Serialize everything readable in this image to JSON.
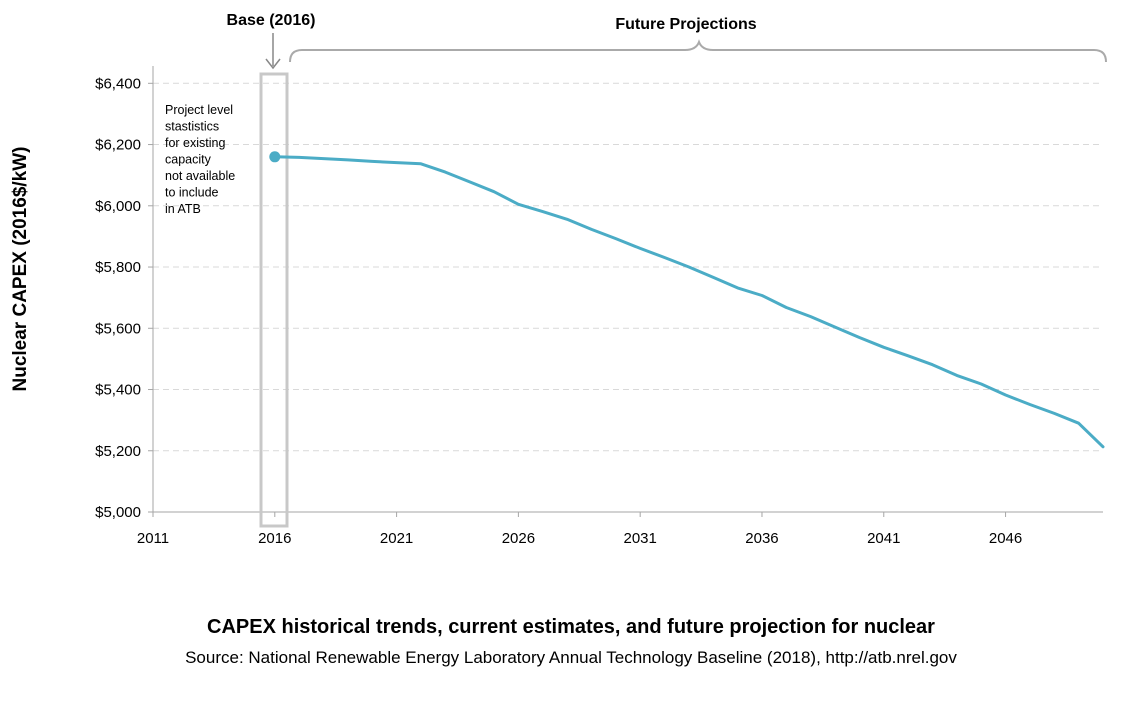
{
  "chart_data": {
    "type": "line",
    "ylabel": "Nuclear CAPEX (2016$/kW)",
    "x_ticks": [
      "2011",
      "2016",
      "2021",
      "2026",
      "2031",
      "2036",
      "2041",
      "2046"
    ],
    "y_ticks": [
      "$5,000",
      "$5,200",
      "$5,400",
      "$5,600",
      "$5,800",
      "$6,000",
      "$6,200",
      "$6,400"
    ],
    "xlim": [
      2011,
      2050
    ],
    "ylim": [
      5000,
      6450
    ],
    "grid": "horizontal dashed",
    "series_color": "#4bacc6",
    "base_point": {
      "x": 2016,
      "y": 6160
    },
    "series": [
      {
        "x": [
          2016,
          2017,
          2018,
          2019,
          2020,
          2021,
          2022,
          2023,
          2024,
          2025,
          2026,
          2027,
          2028,
          2029,
          2030,
          2031,
          2032,
          2033,
          2034,
          2035,
          2036,
          2037,
          2038,
          2039,
          2040,
          2041,
          2042,
          2043,
          2044,
          2045,
          2046,
          2047,
          2048,
          2049,
          2050
        ],
        "y": [
          6160,
          6158,
          6154,
          6150,
          6145,
          6141,
          6137,
          6110,
          6078,
          6046,
          6005,
          5981,
          5956,
          5923,
          5893,
          5861,
          5831,
          5800,
          5766,
          5732,
          5707,
          5668,
          5638,
          5604,
          5570,
          5538,
          5510,
          5481,
          5446,
          5418,
          5382,
          5351,
          5322,
          5290,
          5213
        ]
      }
    ],
    "annotations": {
      "base_label": "Base (2016)",
      "future_label": "Future Projections",
      "note_lines": [
        "Project level",
        "stastistics",
        "for existing",
        "capacity",
        "not available",
        "to include",
        "in ATB"
      ]
    }
  },
  "caption": {
    "title": "CAPEX historical trends, current estimates, and future projection for nuclear",
    "source": "Source: National Renewable Energy Laboratory Annual Technology Baseline (2018), http://atb.nrel.gov"
  }
}
